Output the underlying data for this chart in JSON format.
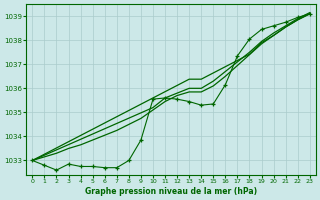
{
  "xlabel": "Graphe pression niveau de la mer (hPa)",
  "x": [
    0,
    1,
    2,
    3,
    4,
    5,
    6,
    7,
    8,
    9,
    10,
    11,
    12,
    13,
    14,
    15,
    16,
    17,
    18,
    19,
    20,
    21,
    22,
    23
  ],
  "line_smooth1": [
    1033.0,
    1033.26,
    1033.52,
    1033.78,
    1034.04,
    1034.3,
    1034.56,
    1034.82,
    1035.08,
    1035.34,
    1035.6,
    1035.86,
    1036.12,
    1036.38,
    1036.38,
    1036.64,
    1036.9,
    1037.16,
    1037.42,
    1037.9,
    1038.2,
    1038.55,
    1038.85,
    1039.1
  ],
  "line_smooth2": [
    1033.0,
    1033.22,
    1033.44,
    1033.66,
    1033.88,
    1034.1,
    1034.32,
    1034.54,
    1034.76,
    1034.98,
    1035.2,
    1035.6,
    1035.8,
    1036.0,
    1036.0,
    1036.3,
    1036.7,
    1037.1,
    1037.5,
    1037.95,
    1038.3,
    1038.6,
    1038.9,
    1039.15
  ],
  "line_smooth3": [
    1033.0,
    1033.15,
    1033.3,
    1033.5,
    1033.65,
    1033.85,
    1034.05,
    1034.25,
    1034.5,
    1034.75,
    1035.1,
    1035.45,
    1035.7,
    1035.85,
    1035.85,
    1036.1,
    1036.5,
    1036.95,
    1037.4,
    1037.85,
    1038.2,
    1038.55,
    1038.85,
    1039.1
  ],
  "line_markers": [
    1033.0,
    1032.8,
    1032.6,
    1032.85,
    1032.75,
    1032.75,
    1032.7,
    1032.7,
    1033.0,
    1033.85,
    1035.55,
    1035.6,
    1035.55,
    1035.45,
    1035.3,
    1035.35,
    1036.15,
    1037.35,
    1038.05,
    1038.45,
    1038.6,
    1038.75,
    1038.95,
    1039.1
  ],
  "bg_color": "#cce8e8",
  "grid_color": "#aacccc",
  "line_color": "#006600",
  "text_color": "#006600",
  "ylim": [
    1032.4,
    1039.5
  ],
  "yticks": [
    1033,
    1034,
    1035,
    1036,
    1037,
    1038,
    1039
  ],
  "xticks": [
    0,
    1,
    2,
    3,
    4,
    5,
    6,
    7,
    8,
    9,
    10,
    11,
    12,
    13,
    14,
    15,
    16,
    17,
    18,
    19,
    20,
    21,
    22,
    23
  ]
}
